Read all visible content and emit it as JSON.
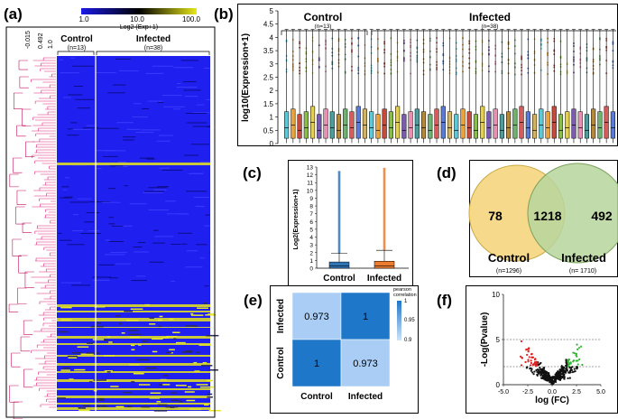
{
  "panels": {
    "a": "(a)",
    "b": "(b)",
    "c": "(c)",
    "d": "(d)",
    "e": "(e)",
    "f": "(f)"
  },
  "chart_data": [
    {
      "id": "a",
      "type": "heatmap",
      "colorbar_ticks": [
        "1.0",
        "10.0",
        "100.0"
      ],
      "colorbar_label": "Log2 (Exp+1)",
      "colors": [
        "#1a1ae6",
        "#000000",
        "#e6e61a"
      ],
      "dendrogram_ticks": [
        "-0.015",
        "0.492",
        "1.0"
      ],
      "groups": [
        {
          "name": "Control",
          "n": "(n=13)"
        },
        {
          "name": "Infected",
          "n": "(n=38)"
        }
      ]
    },
    {
      "id": "b",
      "type": "box",
      "ylabel": "log10(Expression+1)",
      "y_ticks": [
        "0",
        "0.5",
        "1",
        "1.5",
        "2",
        "2.5",
        "3",
        "3.5",
        "4",
        "4.5",
        "5"
      ],
      "ylim": [
        0,
        5
      ],
      "groups": [
        {
          "name": "Control",
          "n": "(n=13)",
          "count": 13
        },
        {
          "name": "Infected",
          "n": "(n=38)",
          "count": 38
        }
      ],
      "medians": [
        0.6,
        0.7,
        0.5,
        0.6,
        0.8,
        0.5,
        0.7,
        0.6,
        0.5,
        0.7,
        0.6,
        0.8,
        0.7,
        0.6,
        0.5,
        0.7,
        0.6,
        0.8,
        0.5,
        0.6,
        0.7,
        0.6,
        0.5,
        0.7,
        0.8,
        0.6,
        0.5,
        0.7,
        0.6,
        0.5,
        0.8,
        0.6,
        0.7,
        0.5,
        0.6,
        0.7,
        0.8,
        0.6,
        0.5,
        0.7,
        0.6,
        0.8,
        0.5,
        0.6,
        0.7,
        0.6,
        0.5,
        0.7,
        0.6,
        0.8,
        0.6
      ],
      "q1": 0.2,
      "q3": [
        1.2,
        1.3,
        1.1,
        1.2,
        1.4,
        1.1,
        1.3,
        1.2,
        1.1,
        1.3,
        1.2,
        1.4,
        1.3,
        1.2,
        1.1,
        1.3,
        1.2,
        1.4,
        1.1,
        1.2,
        1.3,
        1.2,
        1.1,
        1.3,
        1.4,
        1.2,
        1.1,
        1.3,
        1.2,
        1.1,
        1.4,
        1.2,
        1.3,
        1.1,
        1.2,
        1.3,
        1.4,
        1.2,
        1.1,
        1.3,
        1.2,
        1.4,
        1.1,
        1.2,
        1.3,
        1.2,
        1.1,
        1.3,
        1.2,
        1.4,
        1.2
      ],
      "whisker_high": 4.3,
      "colors": [
        "#5ec8d6",
        "#e8a33a",
        "#c94a3a",
        "#8bbd4e",
        "#e6d04a",
        "#7a5bb0",
        "#e88fb4",
        "#4a9e9e",
        "#b5893a",
        "#6fb26f",
        "#d65b5b",
        "#5b7ad6",
        "#d6b35b"
      ]
    },
    {
      "id": "c",
      "type": "box",
      "ylabel": "Log2(Expression+1)",
      "y_ticks": [
        "0",
        "1",
        "2",
        "3",
        "4",
        "5",
        "6",
        "7",
        "8",
        "9",
        "10",
        "11",
        "12",
        "13"
      ],
      "ylim": [
        0,
        13
      ],
      "categories": [
        "Control",
        "Infected"
      ],
      "median": [
        0.3,
        0.3
      ],
      "q3": [
        0.8,
        0.9
      ],
      "whisker_high": [
        1.9,
        2.3
      ],
      "outlier_max": [
        12.5,
        12.9
      ],
      "colors": [
        "#2f74b5",
        "#ed7d31"
      ]
    },
    {
      "id": "d",
      "type": "venn",
      "sets": [
        {
          "name": "Control",
          "n": "(n=1296)",
          "color": "#f7d98b"
        },
        {
          "name": "Infected",
          "n": "(n= 1710)",
          "color": "#b7d59c"
        }
      ],
      "only_a": "78",
      "both": "1218",
      "only_b": "492"
    },
    {
      "id": "e",
      "type": "heatmap",
      "legend_title_1": "pearson",
      "legend_title_2": "correlation",
      "legend_ticks": [
        "1",
        "0.95",
        "0.9"
      ],
      "rows": [
        "Infected",
        "Control"
      ],
      "cols": [
        "Control",
        "Infected"
      ],
      "values": [
        [
          "0.973",
          "1"
        ],
        [
          "1",
          "0.973"
        ]
      ]
    },
    {
      "id": "f",
      "type": "scatter",
      "xlabel": "log (FC)",
      "ylabel": "-Log(Pvalue)",
      "x_ticks": [
        "-5.0",
        "-2.5",
        "0.0",
        "2.5",
        "5.0"
      ],
      "y_ticks": [
        "0",
        "5",
        "10"
      ],
      "xlim": [
        -5,
        5
      ],
      "ylim": [
        0,
        10
      ],
      "hlines": [
        5,
        2
      ]
    }
  ]
}
